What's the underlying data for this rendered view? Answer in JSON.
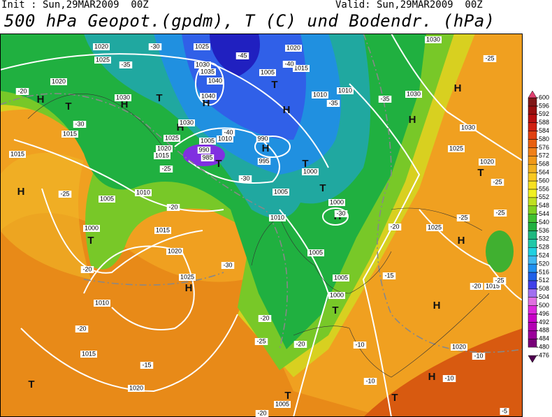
{
  "header": {
    "init": "Init : Sun,29MAR2009  00Z",
    "valid": "Valid: Sun,29MAR2009  00Z",
    "title": "500 hPa Geopot.(gpdm), T (C) und Bodendr. (hPa)"
  },
  "pressure_centers": [
    "H",
    "H",
    "H",
    "H",
    "H",
    "H",
    "H",
    "H",
    "H",
    "H",
    "H",
    "H",
    "H",
    "H",
    "T",
    "T",
    "T",
    "T",
    "T",
    "T",
    "T",
    "T",
    "T",
    "T",
    "T",
    "T"
  ],
  "isobar_labels": [
    "1020",
    "1025",
    "1020",
    "1030",
    "1015",
    "1015",
    "1005",
    "1000",
    "1010",
    "1015",
    "1020",
    "1025",
    "1010",
    "1015",
    "1020",
    "1025",
    "1030",
    "1035",
    "1040",
    "1040",
    "1030",
    "1025",
    "1020",
    "1015",
    "1005",
    "1010",
    "990",
    "985",
    "990",
    "995",
    "1000",
    "1005",
    "1010",
    "1005",
    "1005",
    "1000",
    "1010",
    "1010",
    "1015",
    "1020",
    "1005",
    "1030",
    "1030",
    "1025",
    "1020",
    "1025",
    "1015",
    "1020",
    "1000",
    "1005",
    "1030"
  ],
  "isotherm_labels": [
    "-30",
    "-35",
    "-20",
    "-30",
    "-25",
    "-25",
    "-20",
    "-20",
    "-20",
    "-15",
    "-45",
    "-40",
    "-40",
    "-30",
    "-35",
    "-35",
    "-25",
    "-25",
    "-25",
    "-25",
    "-20",
    "-15",
    "-30",
    "-20",
    "-25",
    "-20",
    "-10",
    "-10",
    "-10",
    "-10",
    "-5",
    "-20",
    "-30",
    "-25",
    "-20"
  ],
  "colorbar": {
    "ticks": [
      476,
      480,
      484,
      488,
      492,
      496,
      500,
      504,
      508,
      512,
      516,
      520,
      524,
      528,
      532,
      536,
      540,
      544,
      548,
      552,
      556,
      560,
      564,
      568,
      572,
      576,
      580,
      584,
      588,
      592,
      596,
      600
    ],
    "colors": [
      "#500050",
      "#780078",
      "#9a009a",
      "#b400b4",
      "#c800c8",
      "#dc28dc",
      "#e070e0",
      "#a070f0",
      "#4040e8",
      "#2060e8",
      "#2090f0",
      "#40b8f0",
      "#20d0e0",
      "#20c8a8",
      "#20b880",
      "#20b040",
      "#40c030",
      "#80d020",
      "#c0e020",
      "#f0f020",
      "#f8e020",
      "#f8c820",
      "#f0b020",
      "#f09818",
      "#f08018",
      "#e86010",
      "#e04010",
      "#d02010",
      "#b81010",
      "#981010",
      "#801818",
      "#e04070"
    ]
  }
}
